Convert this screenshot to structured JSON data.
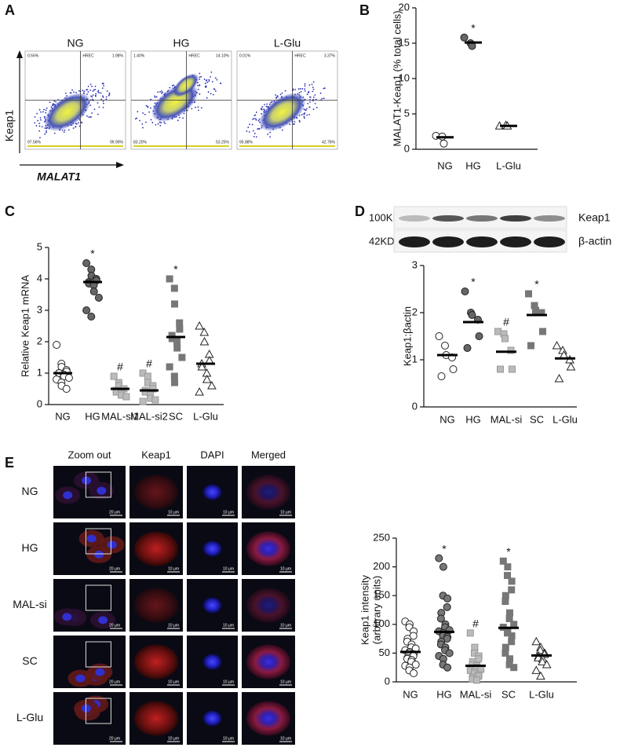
{
  "panel_labels": [
    "A",
    "B",
    "C",
    "D",
    "E"
  ],
  "flow_cytometry": {
    "y_label": "Keap1",
    "x_label": "MALAT1",
    "plots": [
      {
        "title": "NG",
        "gate": "HREC",
        "q_ul": "0.56%",
        "q_ur": "1.98%",
        "q_ll": "97.56%",
        "q_lr": "99.90%"
      },
      {
        "title": "HG",
        "gate": "HREC",
        "q_ul": "1.40%",
        "q_ur": "14.10%",
        "q_ll": "83.20%",
        "q_lr": "53.25%"
      },
      {
        "title": "L-Glu",
        "gate": "HREC",
        "q_ul": "0.01%",
        "q_ur": "3.37%",
        "q_ll": "95.88%",
        "q_lr": "42.76%"
      }
    ]
  },
  "western_blot": {
    "rows": [
      {
        "size": "100KD",
        "protein": "Keap1"
      },
      {
        "size": "42KD",
        "protein": "β-actin"
      }
    ]
  },
  "microscopy": {
    "columns": [
      "Zoom out",
      "Keap1",
      "DAPI",
      "Merged"
    ],
    "rows": [
      "NG",
      "HG",
      "MAL-si",
      "SC",
      "L-Glu"
    ],
    "scale_zoom": "20 μm",
    "scale_detail": "10 μm"
  },
  "chart_data": [
    {
      "type": "dot",
      "ylabel": [
        "MALAT1-Keap1 (% total cells)"
      ],
      "categories": [
        "NG",
        "HG",
        "L-Glu"
      ],
      "ylim": [
        0,
        20
      ],
      "yticks": [
        0,
        5,
        10,
        15,
        20
      ],
      "markers": [
        "circle",
        "circle",
        "triangle"
      ],
      "fills": [
        "#ffffff",
        "#666666",
        "#ffffff"
      ],
      "points": [
        [
          1.9,
          1.8,
          0.8
        ],
        [
          15.8,
          15.0,
          14.6
        ],
        [
          3.3,
          3.4,
          3.3
        ]
      ],
      "means": [
        1.7,
        15.1,
        3.3
      ],
      "annotations": [
        null,
        "*",
        null
      ]
    },
    {
      "type": "dot",
      "ylabel": [
        "Relative Keap1 mRNA"
      ],
      "categories": [
        "NG",
        "HG",
        "MAL-si1",
        "MAL-si2",
        "SC",
        "L-Glu"
      ],
      "ylim": [
        0,
        5
      ],
      "yticks": [
        0,
        1,
        2,
        3,
        4,
        5
      ],
      "markers": [
        "circle",
        "circle",
        "square",
        "square",
        "square",
        "triangle"
      ],
      "fills": [
        "#ffffff",
        "#666666",
        "#bbbbbb",
        "#bbbbbb",
        "#777777",
        "#ffffff"
      ],
      "points": [
        [
          1.9,
          1.3,
          1.2,
          1.1,
          1.05,
          1.0,
          1.0,
          0.95,
          0.9,
          0.85,
          0.8,
          0.7,
          0.6,
          0.5
        ],
        [
          4.5,
          4.3,
          4.1,
          4.0,
          3.95,
          3.9,
          3.85,
          3.8,
          3.6,
          3.4,
          3.0,
          2.8
        ],
        [
          0.9,
          0.7,
          0.6,
          0.5,
          0.5,
          0.45,
          0.4,
          0.35,
          0.3,
          0.25
        ],
        [
          1.0,
          0.9,
          0.7,
          0.6,
          0.5,
          0.45,
          0.4,
          0.3,
          0.2,
          0.15,
          0.1
        ],
        [
          4.0,
          3.7,
          3.2,
          2.6,
          2.4,
          2.2,
          2.1,
          2.0,
          1.8,
          1.5,
          1.2,
          0.9,
          0.7
        ],
        [
          2.5,
          2.3,
          2.0,
          1.6,
          1.4,
          1.3,
          1.2,
          1.0,
          0.8,
          0.6,
          0.4
        ]
      ],
      "means": [
        1.0,
        3.9,
        0.5,
        0.45,
        2.15,
        1.3
      ],
      "annotations": [
        null,
        "*",
        "#",
        "#",
        "*",
        null
      ]
    },
    {
      "type": "dot",
      "ylabel": [
        "Keap1:βactin"
      ],
      "categories": [
        "NG",
        "HG",
        "MAL-si",
        "SC",
        "L-Glu"
      ],
      "ylim": [
        0,
        3
      ],
      "yticks": [
        0,
        1,
        2,
        3
      ],
      "markers": [
        "circle",
        "circle",
        "square",
        "square",
        "triangle"
      ],
      "fills": [
        "#ffffff",
        "#666666",
        "#bbbbbb",
        "#777777",
        "#ffffff"
      ],
      "points": [
        [
          1.5,
          1.3,
          1.1,
          1.05,
          0.8,
          0.65
        ],
        [
          2.45,
          2.0,
          1.95,
          1.85,
          1.5,
          1.25
        ],
        [
          1.6,
          1.55,
          1.45,
          1.2,
          0.8,
          0.8
        ],
        [
          2.4,
          2.15,
          2.05,
          2.0,
          1.6,
          1.3
        ],
        [
          1.3,
          1.2,
          1.1,
          1.0,
          0.85,
          0.6
        ]
      ],
      "means": [
        1.1,
        1.8,
        1.17,
        1.95,
        1.03
      ],
      "annotations": [
        null,
        "*",
        "#",
        "*",
        null
      ]
    },
    {
      "type": "dot",
      "ylabel": [
        "Keap1 intensity",
        "(arbitrary units)"
      ],
      "categories": [
        "NG",
        "HG",
        "MAL-si",
        "SC",
        "L-Glu"
      ],
      "ylim": [
        0,
        250
      ],
      "yticks": [
        0,
        50,
        100,
        150,
        200,
        250
      ],
      "markers": [
        "circle",
        "circle",
        "square",
        "square",
        "triangle"
      ],
      "fills": [
        "#ffffff",
        "#777777",
        "#bbbbbb",
        "#777777",
        "#ffffff"
      ],
      "points": [
        [
          105,
          100,
          95,
          88,
          80,
          75,
          70,
          65,
          60,
          58,
          55,
          52,
          50,
          48,
          45,
          42,
          40,
          38,
          35,
          30,
          28,
          25,
          20,
          15
        ],
        [
          215,
          200,
          150,
          145,
          130,
          120,
          110,
          100,
          95,
          90,
          88,
          85,
          80,
          78,
          75,
          70,
          65,
          60,
          55,
          50,
          45,
          40,
          30,
          25
        ],
        [
          85,
          60,
          50,
          45,
          40,
          35,
          30,
          28,
          25,
          22,
          20,
          18,
          15,
          12,
          10,
          8,
          5,
          3
        ],
        [
          210,
          200,
          185,
          175,
          160,
          150,
          140,
          120,
          110,
          100,
          95,
          90,
          85,
          80,
          70,
          60,
          50,
          40,
          30,
          25
        ],
        [
          70,
          60,
          55,
          50,
          48,
          45,
          42,
          40,
          35,
          30,
          20,
          10
        ]
      ],
      "means": [
        52,
        87,
        28,
        94,
        46
      ],
      "annotations": [
        null,
        "*",
        "#",
        "*",
        null
      ]
    }
  ]
}
